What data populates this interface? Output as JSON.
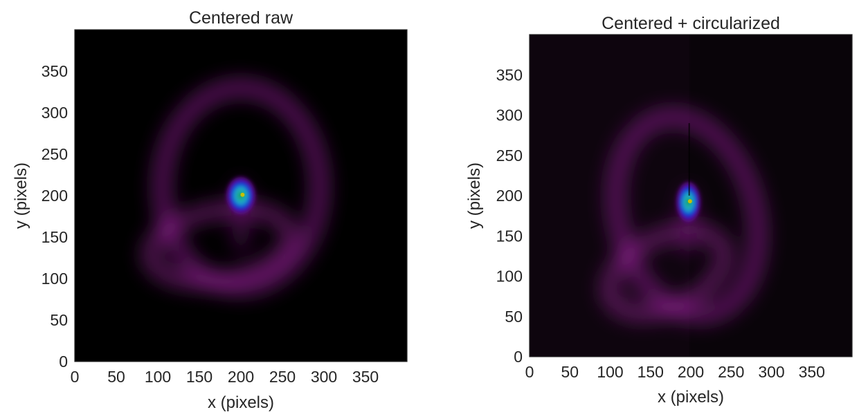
{
  "chart_data": [
    {
      "type": "heatmap",
      "title": "Centered raw",
      "xlabel": "x (pixels)",
      "ylabel": "y (pixels)",
      "xlim": [
        0,
        400
      ],
      "ylim": [
        0,
        400
      ],
      "xticks": [
        0,
        50,
        100,
        150,
        200,
        250,
        300,
        350
      ],
      "yticks": [
        0,
        50,
        100,
        150,
        200,
        250,
        300,
        350
      ],
      "colormap": "dark-magenta-blue-cyan-green-yellow",
      "features": {
        "center": [
          200,
          200
        ],
        "ring_description": "elliptical purple ring, brightest lower-left",
        "ring_center": [
          200,
          210
        ],
        "ring_radius": [
          95,
          120
        ],
        "core_radius": [
          14,
          18
        ]
      }
    },
    {
      "type": "heatmap",
      "title": "Centered + circularized",
      "xlabel": "x (pixels)",
      "ylabel": "y (pixels)",
      "xlim": [
        0,
        400
      ],
      "ylim": [
        0,
        400
      ],
      "xticks": [
        0,
        50,
        100,
        150,
        200,
        250,
        300,
        350
      ],
      "yticks": [
        0,
        50,
        100,
        150,
        200,
        250,
        300,
        350
      ],
      "colormap": "dark-magenta-blue-cyan-green-yellow",
      "features": {
        "center": [
          197,
          192
        ],
        "ring_description": "tilted purple ring, brightest lower-left, seam at x=198",
        "ring_center": [
          195,
          175
        ],
        "ring_radius": [
          85,
          125
        ],
        "core_radius": [
          12,
          20
        ]
      }
    }
  ],
  "colors": {
    "background": "#000000",
    "ring": "#9a1fa0",
    "core_blue": "#1616c8",
    "core_cyan": "#1aa0c8",
    "core_green": "#1fa060",
    "core_yellow": "#c8c000"
  }
}
